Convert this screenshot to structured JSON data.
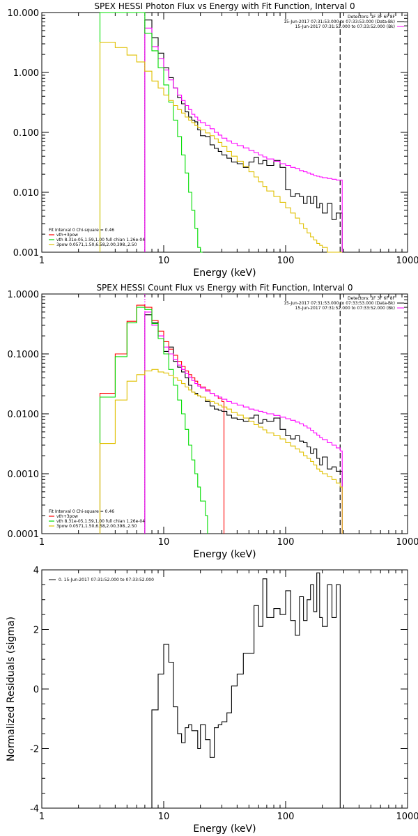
{
  "chart_data": [
    {
      "type": "line",
      "title": "SPEX HESSI Photon Flux vs Energy with Fit Function, Interval 0",
      "xlabel": "Energy (keV)",
      "ylabel": "",
      "xscale": "log",
      "yscale": "log",
      "xlim": [
        1,
        1000
      ],
      "ylim": [
        0.001,
        10
      ],
      "x_ticks": [
        "1",
        "10",
        "100",
        "1000"
      ],
      "y_ticks": [
        "10.000",
        "1.000",
        "0.100",
        "0.010",
        "0.001"
      ],
      "vlines": [
        {
          "x": 7,
          "color": "#ff00ff",
          "style": "dotted"
        },
        {
          "x": 280,
          "color": "#000000",
          "style": "dashed"
        }
      ],
      "legend_topright": [
        "Detectors: 1F 3F 6F 8F",
        "15-Jun-2017 07:31:53.000 to 07:33:53.000 (Data-Bk)",
        "15-Jun-2017 07:31:52.000 to 07:33:52.000 (Bk)"
      ],
      "legend_bottomleft": [
        {
          "text": "Fit Interval 0   Chi-square = 0.46",
          "color": "#000000"
        },
        {
          "text": "vth+3pow",
          "color": "#ff0000"
        },
        {
          "text": "vth 8.31e-05,1.59,1.00  full chian 1.26e-04",
          "color": "#00dd00"
        },
        {
          "text": "3pow 0.0571,1.50,6.58,2.00,398.,2.50",
          "color": "#e0c000"
        }
      ],
      "series": [
        {
          "color": "#000000",
          "x": [
            7,
            8,
            9,
            10,
            11,
            12,
            13,
            14,
            15,
            16,
            17,
            18,
            19,
            20,
            22,
            24,
            26,
            28,
            30,
            33,
            36,
            40,
            45,
            50,
            55,
            60,
            65,
            70,
            80,
            90,
            100,
            110,
            120,
            130,
            140,
            150,
            160,
            170,
            180,
            190,
            200,
            220,
            240,
            260,
            280
          ],
          "y": [
            7.5,
            3.8,
            2.1,
            1.2,
            0.82,
            0.55,
            0.38,
            0.3,
            0.22,
            0.18,
            0.16,
            0.15,
            0.11,
            0.088,
            0.085,
            0.062,
            0.054,
            0.048,
            0.042,
            0.037,
            0.032,
            0.03,
            0.026,
            0.032,
            0.038,
            0.03,
            0.034,
            0.028,
            0.034,
            0.026,
            0.011,
            0.0085,
            0.0095,
            0.0085,
            0.0065,
            0.0085,
            0.0065,
            0.0085,
            0.0055,
            0.0065,
            0.0045,
            0.0065,
            0.0035,
            0.0045,
            0.0045
          ]
        },
        {
          "color": "#ff00ff",
          "x": [
            7,
            8,
            9,
            10,
            11,
            12,
            13,
            14,
            15,
            16,
            17,
            18,
            19,
            20,
            22,
            24,
            26,
            28,
            30,
            33,
            36,
            40,
            45,
            50,
            55,
            60,
            65,
            70,
            80,
            90,
            100,
            110,
            120,
            130,
            140,
            150,
            160,
            170,
            180,
            190,
            200,
            220,
            240,
            260,
            280
          ],
          "y": [
            5.5,
            2.7,
            1.7,
            1.1,
            0.75,
            0.55,
            0.42,
            0.34,
            0.28,
            0.24,
            0.2,
            0.18,
            0.16,
            0.145,
            0.13,
            0.115,
            0.1,
            0.09,
            0.08,
            0.072,
            0.066,
            0.06,
            0.055,
            0.05,
            0.046,
            0.042,
            0.039,
            0.036,
            0.033,
            0.03,
            0.028,
            0.026,
            0.025,
            0.023,
            0.022,
            0.021,
            0.02,
            0.019,
            0.0185,
            0.018,
            0.0175,
            0.017,
            0.0165,
            0.016,
            0.016
          ]
        },
        {
          "color": "#00dd00",
          "x": [
            3,
            7,
            8,
            9,
            10,
            11,
            12,
            13,
            14,
            15,
            16,
            17,
            18,
            19,
            20
          ],
          "y": [
            10,
            4.5,
            2.3,
            1.2,
            0.62,
            0.32,
            0.16,
            0.085,
            0.042,
            0.021,
            0.01,
            0.005,
            0.0025,
            0.0012,
            0.0008
          ]
        },
        {
          "color": "#e0c000",
          "x": [
            3,
            4,
            5,
            6,
            7,
            8,
            9,
            10,
            11,
            12,
            13,
            14,
            15,
            16,
            17,
            18,
            19,
            20,
            22,
            24,
            26,
            28,
            30,
            33,
            36,
            40,
            45,
            50,
            55,
            60,
            65,
            70,
            80,
            90,
            100,
            110,
            120,
            130,
            140,
            150,
            160,
            170,
            180,
            190,
            200,
            220,
            240,
            260,
            280
          ],
          "y": [
            3.2,
            2.6,
            1.95,
            1.5,
            1.05,
            0.72,
            0.55,
            0.42,
            0.34,
            0.28,
            0.24,
            0.21,
            0.18,
            0.16,
            0.145,
            0.13,
            0.12,
            0.11,
            0.098,
            0.088,
            0.078,
            0.068,
            0.058,
            0.048,
            0.04,
            0.033,
            0.027,
            0.022,
            0.018,
            0.015,
            0.0125,
            0.0105,
            0.0085,
            0.0068,
            0.0055,
            0.0045,
            0.0037,
            0.003,
            0.0025,
            0.0021,
            0.0018,
            0.0016,
            0.0014,
            0.0013,
            0.0012,
            0.001,
            0.001,
            0.001,
            0.001
          ]
        }
      ]
    },
    {
      "type": "line",
      "title": "SPEX HESSI Count Flux vs Energy with Fit Function, Interval 0",
      "xlabel": "Energy (keV)",
      "ylabel": "",
      "xscale": "log",
      "yscale": "log",
      "xlim": [
        1,
        1000
      ],
      "ylim": [
        0.0001,
        1
      ],
      "x_ticks": [
        "1",
        "10",
        "100",
        "1000"
      ],
      "y_ticks": [
        "1.0000",
        "0.1000",
        "0.0100",
        "0.0010",
        "0.0001"
      ],
      "vlines": [
        {
          "x": 7,
          "color": "#ff00ff",
          "style": "dotted"
        },
        {
          "x": 280,
          "color": "#000000",
          "style": "dashed"
        }
      ],
      "legend_topright": [
        "Detectors: 1F 3F 6F 8F",
        "15-Jun-2017 07:31:53.000 to 07:33:53.000 (Data-Bk)",
        "15-Jun-2017 07:31:52.000 to 07:33:52.000 (Bk)"
      ],
      "legend_bottomleft": [
        {
          "text": "Fit Interval 0   Chi-square = 0.46",
          "color": "#000000"
        },
        {
          "text": "vth+3pow",
          "color": "#ff0000"
        },
        {
          "text": "vth 8.31e-05,1.59,1.00  full chian 1.26e-04",
          "color": "#00dd00"
        },
        {
          "text": "3pow 0.0571,1.50,6.58,2.00,398.,2.50",
          "color": "#e0c000"
        }
      ],
      "series": [
        {
          "color": "#ff0000",
          "x": [
            3,
            4,
            5,
            6,
            7,
            8,
            9,
            10,
            11,
            12,
            13,
            14,
            15,
            16,
            17,
            18,
            19,
            20,
            22,
            24,
            26,
            28,
            30
          ],
          "y": [
            0.022,
            0.1,
            0.35,
            0.65,
            0.6,
            0.36,
            0.24,
            0.16,
            0.12,
            0.095,
            0.075,
            0.062,
            0.052,
            0.045,
            0.04,
            0.035,
            0.031,
            0.028,
            0.025,
            0.022,
            0.02,
            0.018,
            0.016
          ]
        },
        {
          "color": "#000000",
          "x": [
            7,
            8,
            9,
            10,
            11,
            12,
            13,
            14,
            15,
            16,
            17,
            18,
            19,
            20,
            22,
            24,
            26,
            28,
            30,
            33,
            36,
            40,
            45,
            50,
            55,
            60,
            65,
            70,
            80,
            90,
            100,
            110,
            120,
            130,
            140,
            150,
            160,
            170,
            180,
            190,
            200,
            220,
            240,
            260,
            280
          ],
          "y": [
            0.45,
            0.33,
            0.2,
            0.11,
            0.13,
            0.075,
            0.06,
            0.05,
            0.04,
            0.03,
            0.023,
            0.022,
            0.02,
            0.019,
            0.016,
            0.0135,
            0.012,
            0.0115,
            0.011,
            0.0095,
            0.0085,
            0.008,
            0.0075,
            0.0085,
            0.0095,
            0.007,
            0.008,
            0.0075,
            0.0085,
            0.0055,
            0.0043,
            0.0038,
            0.0043,
            0.0035,
            0.0033,
            0.0028,
            0.0022,
            0.0026,
            0.0018,
            0.0014,
            0.0019,
            0.0012,
            0.0013,
            0.0011,
            0.0011
          ]
        },
        {
          "color": "#ff00ff",
          "x": [
            7,
            8,
            9,
            10,
            11,
            12,
            13,
            14,
            15,
            16,
            17,
            18,
            19,
            20,
            22,
            24,
            26,
            28,
            30,
            33,
            36,
            40,
            45,
            50,
            55,
            60,
            65,
            70,
            80,
            90,
            100,
            110,
            120,
            130,
            140,
            150,
            160,
            170,
            180,
            190,
            200,
            220,
            240,
            260,
            280
          ],
          "y": [
            0.5,
            0.3,
            0.2,
            0.13,
            0.1,
            0.08,
            0.065,
            0.055,
            0.047,
            0.041,
            0.036,
            0.032,
            0.029,
            0.027,
            0.024,
            0.022,
            0.02,
            0.019,
            0.0175,
            0.016,
            0.015,
            0.014,
            0.013,
            0.012,
            0.0115,
            0.011,
            0.0105,
            0.01,
            0.0094,
            0.0088,
            0.0083,
            0.0078,
            0.0073,
            0.0068,
            0.0063,
            0.0058,
            0.0053,
            0.0048,
            0.0044,
            0.004,
            0.0037,
            0.0033,
            0.003,
            0.0027,
            0.0024
          ]
        },
        {
          "color": "#00dd00",
          "x": [
            3,
            4,
            5,
            6,
            7,
            8,
            9,
            10,
            11,
            12,
            13,
            14,
            15,
            16,
            17,
            18,
            19,
            20,
            22
          ],
          "y": [
            0.019,
            0.09,
            0.33,
            0.6,
            0.55,
            0.32,
            0.18,
            0.1,
            0.055,
            0.03,
            0.017,
            0.01,
            0.0055,
            0.003,
            0.0017,
            0.001,
            0.0006,
            0.00035,
            0.0002
          ]
        },
        {
          "color": "#e0c000",
          "x": [
            3,
            4,
            5,
            6,
            7,
            8,
            9,
            10,
            11,
            12,
            13,
            14,
            15,
            16,
            17,
            18,
            19,
            20,
            22,
            24,
            26,
            28,
            30,
            33,
            36,
            40,
            45,
            50,
            55,
            60,
            65,
            70,
            80,
            90,
            100,
            110,
            120,
            130,
            140,
            150,
            160,
            170,
            180,
            190,
            200,
            220,
            240,
            260,
            280
          ],
          "y": [
            0.0032,
            0.017,
            0.035,
            0.045,
            0.052,
            0.055,
            0.05,
            0.048,
            0.044,
            0.04,
            0.036,
            0.032,
            0.028,
            0.025,
            0.023,
            0.021,
            0.02,
            0.019,
            0.017,
            0.016,
            0.015,
            0.014,
            0.013,
            0.012,
            0.0105,
            0.0095,
            0.0085,
            0.0075,
            0.0066,
            0.006,
            0.0054,
            0.0048,
            0.0043,
            0.0038,
            0.0033,
            0.0029,
            0.0026,
            0.0023,
            0.002,
            0.0018,
            0.0016,
            0.0014,
            0.0012,
            0.0011,
            0.001,
            0.0009,
            0.0008,
            0.0007,
            0.0006
          ]
        }
      ]
    },
    {
      "type": "line",
      "title": "",
      "xlabel": "Energy (keV)",
      "ylabel": "Normalized Residuals (sigma)",
      "xscale": "log",
      "yscale": "linear",
      "xlim": [
        1,
        1000
      ],
      "ylim": [
        -4,
        4
      ],
      "x_ticks": [
        "1",
        "10",
        "100",
        "1000"
      ],
      "y_ticks": [
        "4",
        "2",
        "0",
        "-2",
        "-4"
      ],
      "legend_topleft": [
        "0. 15-Jun-2017 07:31:52.000 to 07:33:52.000"
      ],
      "series": [
        {
          "color": "#000000",
          "x": [
            7,
            8,
            9,
            10,
            11,
            12,
            13,
            14,
            15,
            16,
            17,
            18,
            19,
            20,
            22,
            24,
            26,
            28,
            30,
            33,
            36,
            40,
            45,
            50,
            55,
            60,
            65,
            70,
            80,
            90,
            100,
            110,
            120,
            130,
            140,
            150,
            160,
            170,
            180,
            190,
            200,
            220,
            240,
            260,
            280
          ],
          "y": [
            -4,
            -0.7,
            0.5,
            1.5,
            0.9,
            -0.6,
            -1.5,
            -1.8,
            -1.3,
            -1.2,
            -1.4,
            -1.4,
            -2,
            -1.2,
            -1.7,
            -2.3,
            -1.3,
            -1.2,
            -1.1,
            -0.8,
            0.1,
            0.5,
            1.2,
            1.2,
            2.8,
            2.1,
            3.7,
            2.4,
            2.7,
            2.5,
            3.3,
            2.3,
            1.8,
            3.1,
            2.3,
            3.0,
            3.5,
            2.6,
            3.9,
            2.4,
            2.1,
            3.5,
            2.4,
            3.5,
            -4
          ]
        }
      ]
    }
  ]
}
